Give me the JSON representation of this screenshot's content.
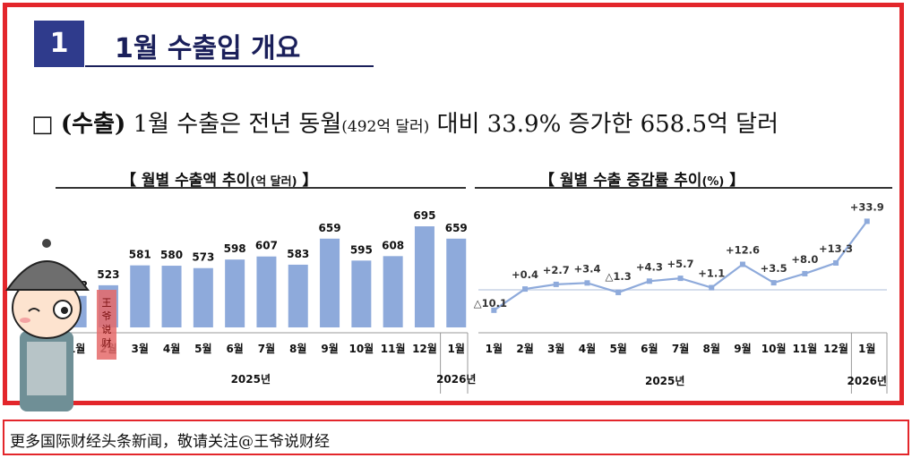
{
  "section": {
    "number": "1",
    "title": "1월 수출입 개요"
  },
  "summary": {
    "checkbox": "□",
    "bold_part": "(수출)",
    "text_1": "1월 수출은 전년 동월",
    "text_small": "(492억 달러)",
    "text_2": "대비 33.9% 증가한 658.5억 달러"
  },
  "chart_titles": {
    "left_main": "【 월별 수출액 추이",
    "left_small": "(억 달러)",
    "left_end": "】",
    "right_main": "【 월별 수출 증감률 추이",
    "right_small": "(%)",
    "right_end": "】"
  },
  "chart_data": [
    {
      "type": "bar",
      "title": "월별 수출액 추이(억 달러)",
      "categories": [
        "1월",
        "2월",
        "3월",
        "4월",
        "5월",
        "6월",
        "7월",
        "8월",
        "9월",
        "10월",
        "11월",
        "12월",
        "1월"
      ],
      "values": [
        492,
        523,
        581,
        580,
        573,
        598,
        607,
        583,
        659,
        595,
        608,
        695,
        659
      ],
      "value_labels": [
        "492",
        "523",
        "581",
        "580",
        "573",
        "598",
        "607",
        "583",
        "659",
        "595",
        "608",
        "695",
        "659"
      ],
      "year_labels": [
        "2025년",
        "2026년"
      ],
      "color": "#8eaadb"
    },
    {
      "type": "line",
      "title": "월별 수출 증감률 추이(%)",
      "categories": [
        "1월",
        "2월",
        "3월",
        "4월",
        "5월",
        "6월",
        "7월",
        "8월",
        "9월",
        "10월",
        "11월",
        "12월",
        "1월"
      ],
      "values": [
        -10.1,
        0.4,
        2.7,
        3.4,
        -1.3,
        4.3,
        5.7,
        1.1,
        12.6,
        3.5,
        8.0,
        13.3,
        33.9
      ],
      "value_labels": [
        "△10.1",
        "+0.4",
        "+2.7",
        "+3.4",
        "△1.3",
        "+4.3",
        "+5.7",
        "+1.1",
        "+12.6",
        "+3.5",
        "+8.0",
        "+13.3",
        "+33.9"
      ],
      "year_labels": [
        "2025년",
        "2026년"
      ],
      "color": "#8eaadb",
      "zero_line": true
    }
  ],
  "mascot": {
    "seal_text": "王爷说财经"
  },
  "footer": {
    "text": "更多国际财经头条新闻，敬请关注@王爷说财经"
  }
}
